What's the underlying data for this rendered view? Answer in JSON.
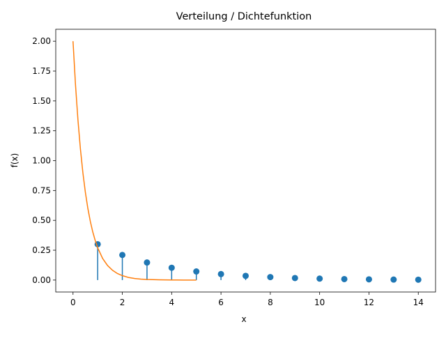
{
  "chart_data": {
    "type": "scatter",
    "title": "Verteilung / Dichtefunktion",
    "xlabel": "x",
    "ylabel": "f(x)",
    "xlim": [
      -0.7,
      14.7
    ],
    "ylim": [
      -0.1,
      2.1
    ],
    "xticks": [
      0,
      2,
      4,
      6,
      8,
      10,
      12,
      14
    ],
    "xtick_labels": [
      "0",
      "2",
      "4",
      "6",
      "8",
      "10",
      "12",
      "14"
    ],
    "yticks": [
      0,
      0.25,
      0.5,
      0.75,
      1.0,
      1.25,
      1.5,
      1.75,
      2.0
    ],
    "ytick_labels": [
      "0.00",
      "0.25",
      "0.50",
      "0.75",
      "1.00",
      "1.25",
      "1.50",
      "1.75",
      "2.00"
    ],
    "grid": false,
    "series": [
      {
        "kind": "stem",
        "color": "#1f77b4",
        "x": [
          1,
          2,
          3,
          4,
          5,
          6,
          7,
          8,
          9,
          10,
          11,
          12,
          13,
          14
        ],
        "y": [
          0.3,
          0.21,
          0.147,
          0.103,
          0.072,
          0.05,
          0.035,
          0.025,
          0.017,
          0.012,
          0.008,
          0.006,
          0.004,
          0.003
        ]
      },
      {
        "kind": "line",
        "color": "#ff7f0e",
        "x": [
          0,
          0.1,
          0.2,
          0.3,
          0.4,
          0.5,
          0.6,
          0.7,
          0.8,
          0.9,
          1.0,
          1.2,
          1.4,
          1.6,
          1.8,
          2.0,
          2.25,
          2.5,
          2.75,
          3.0,
          3.5,
          4.0,
          4.5,
          5.0
        ],
        "y": [
          2.0,
          1.637,
          1.341,
          1.098,
          0.899,
          0.736,
          0.602,
          0.493,
          0.404,
          0.331,
          0.271,
          0.181,
          0.122,
          0.082,
          0.055,
          0.037,
          0.022,
          0.013,
          0.008,
          0.005,
          0.002,
          0.0007,
          0.0002,
          0.0001
        ]
      }
    ]
  }
}
